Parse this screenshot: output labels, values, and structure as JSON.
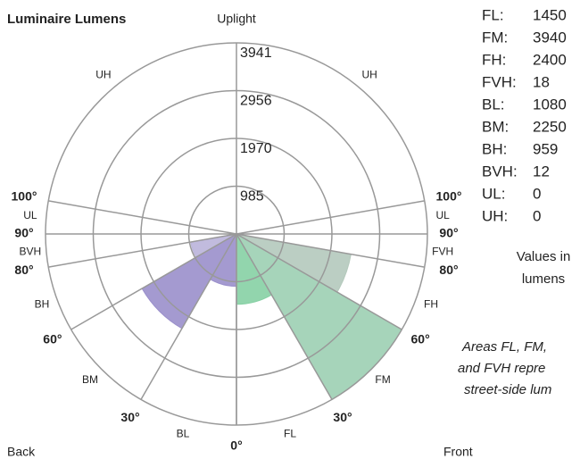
{
  "chart_data": {
    "type": "polar-zones",
    "title": "Luminaire Lumens",
    "rlim": [
      0,
      3941
    ],
    "rticks": [
      985,
      1970,
      2956,
      3941
    ],
    "thetalim": [
      0,
      180
    ],
    "thetaticks": [
      {
        "value": 0,
        "label": "0°"
      },
      {
        "value": 30,
        "label": "30°"
      },
      {
        "value": 60,
        "label": "60°"
      },
      {
        "value": 80,
        "label": "80°"
      },
      {
        "value": 90,
        "label": "90°"
      },
      {
        "value": 100,
        "label": "100°"
      }
    ],
    "series": [
      {
        "name": "Front",
        "side": "right",
        "categories": [
          "FL",
          "FM",
          "FH",
          "FVH"
        ],
        "values": [
          1450,
          3940,
          2400,
          18
        ],
        "colors": [
          "#86d0a4",
          "#9ccfb2",
          "#b4c9bc",
          "#b4c9bc"
        ]
      },
      {
        "name": "Back",
        "side": "left",
        "categories": [
          "BL",
          "BM",
          "BH",
          "BVH"
        ],
        "values": [
          1080,
          2250,
          959,
          12
        ],
        "colors": [
          "#9a8fcb",
          "#9a8fcb",
          "#bab4da",
          "#bab4da"
        ]
      },
      {
        "name": "Uplight",
        "side": "both",
        "categories": [
          "UL",
          "UH"
        ],
        "values": [
          0,
          0
        ],
        "colors": [
          "#cccccc",
          "#cccccc"
        ]
      }
    ],
    "value_list_labels": [
      "FL:",
      "FM:",
      "FH:",
      "FVH:",
      "BL:",
      "BM:",
      "BH:",
      "BVH:",
      "UL:",
      "UH:"
    ],
    "units_note": [
      "Values in",
      "lumens"
    ],
    "footnote": [
      "Areas FL, FM,",
      "and FVH repre",
      "street-side lum"
    ]
  }
}
